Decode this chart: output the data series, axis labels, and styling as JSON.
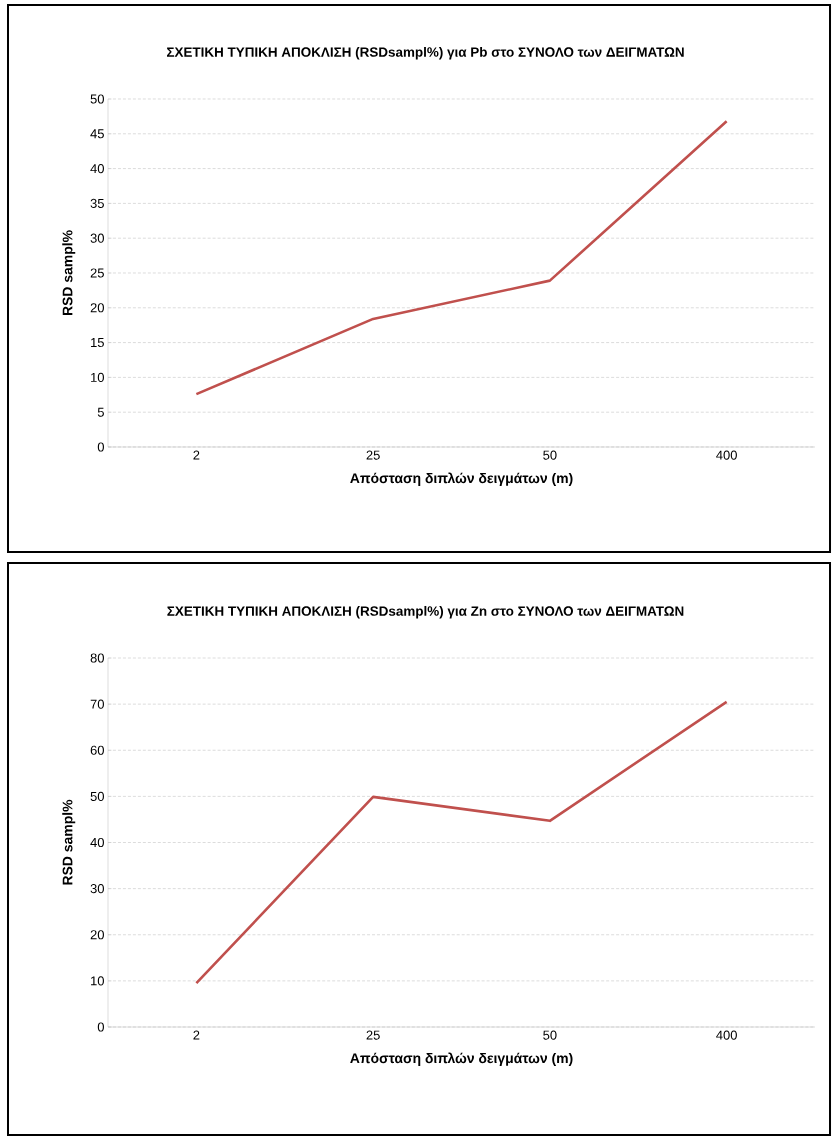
{
  "chart_data": [
    {
      "type": "line",
      "title": "ΣΧΕΤΙΚΗ ΤΥΠΙΚΗ ΑΠΟΚΛΙΣΗ (RSDsampl%) για Pb στο ΣΥΝΟΛΟ των ΔΕΙΓΜΑΤΩΝ",
      "xlabel": "Απόσταση διπλών δειγμάτων (m)",
      "ylabel": "RSD sampl%",
      "categories": [
        "2",
        "25",
        "50",
        "400"
      ],
      "series": [
        {
          "color": "#c0504d",
          "values": [
            7.6,
            18.4,
            23.9,
            46.8
          ]
        }
      ],
      "ylim": [
        0,
        50
      ],
      "yticks": [
        0,
        5,
        10,
        15,
        20,
        25,
        30,
        35,
        40,
        45,
        50
      ],
      "grid": "y",
      "marker": "none",
      "line_style": "solid"
    },
    {
      "type": "line",
      "title": "ΣΧΕΤΙΚΗ ΤΥΠΙΚΗ ΑΠΟΚΛΙΣΗ (RSDsampl%) για Zn στο ΣΥΝΟΛΟ των ΔΕΙΓΜΑΤΩΝ",
      "xlabel": "Απόσταση διπλών δειγμάτων (m)",
      "ylabel": "RSD sampl%",
      "categories": [
        "2",
        "25",
        "50",
        "400"
      ],
      "series": [
        {
          "color": "#c0504d",
          "values": [
            9.5,
            49.9,
            44.7,
            70.5
          ]
        }
      ],
      "ylim": [
        0,
        80
      ],
      "yticks": [
        0,
        10,
        20,
        30,
        40,
        50,
        60,
        70,
        80
      ],
      "grid": "y",
      "marker": "none",
      "line_style": "solid"
    }
  ]
}
